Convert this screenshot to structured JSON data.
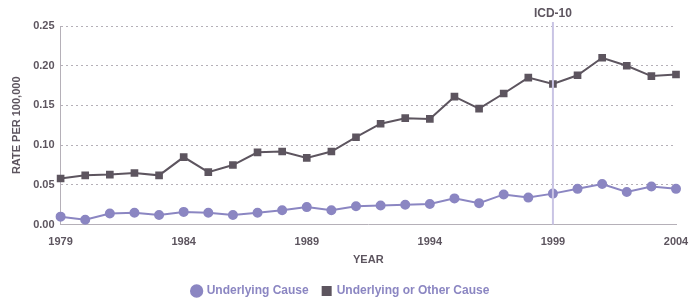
{
  "chart_data": {
    "type": "line",
    "x_label": "YEAR",
    "y_label": "RATE PER 100,000",
    "x": [
      1979,
      1980,
      1981,
      1982,
      1983,
      1984,
      1985,
      1986,
      1987,
      1988,
      1989,
      1990,
      1991,
      1992,
      1993,
      1994,
      1995,
      1996,
      1997,
      1998,
      1999,
      2000,
      2001,
      2002,
      2003,
      2004
    ],
    "series": [
      {
        "name": "Underlying Cause",
        "color": "#8b86c2",
        "marker": "circle",
        "line_style": "solid",
        "values": [
          0.01,
          0.006,
          0.014,
          0.015,
          0.012,
          0.016,
          0.015,
          0.012,
          0.015,
          0.018,
          0.022,
          0.018,
          0.023,
          0.024,
          0.025,
          0.026,
          0.033,
          0.027,
          0.038,
          0.034,
          0.039,
          0.045,
          0.051,
          0.041,
          0.048,
          0.045
        ]
      },
      {
        "name": "Underlying or Other Cause",
        "color": "#5d555f",
        "marker": "square",
        "line_style": "solid",
        "values": [
          0.058,
          0.062,
          0.063,
          0.065,
          0.062,
          0.085,
          0.066,
          0.075,
          0.091,
          0.092,
          0.084,
          0.092,
          0.11,
          0.127,
          0.134,
          0.133,
          0.161,
          0.146,
          0.165,
          0.185,
          0.177,
          0.188,
          0.21,
          0.2,
          0.187,
          0.189
        ]
      }
    ],
    "xlim": [
      1979,
      2004
    ],
    "xticks": [
      1979,
      1984,
      1989,
      1994,
      1999,
      2004
    ],
    "ylim": [
      0,
      0.25
    ],
    "yticks": [
      {
        "value": 0,
        "label": "0.00"
      },
      {
        "value": 0.05,
        "label": "0.05"
      },
      {
        "value": 0.1,
        "label": "0.10"
      },
      {
        "value": 0.15,
        "label": "0.15"
      },
      {
        "value": 0.2,
        "label": "0.20"
      },
      {
        "value": 0.25,
        "label": "0.25"
      }
    ],
    "annotations": [
      {
        "x": 1999,
        "label": "ICD-10",
        "color": "#c9c4e4"
      }
    ],
    "grid": true,
    "legend": "bottom"
  }
}
